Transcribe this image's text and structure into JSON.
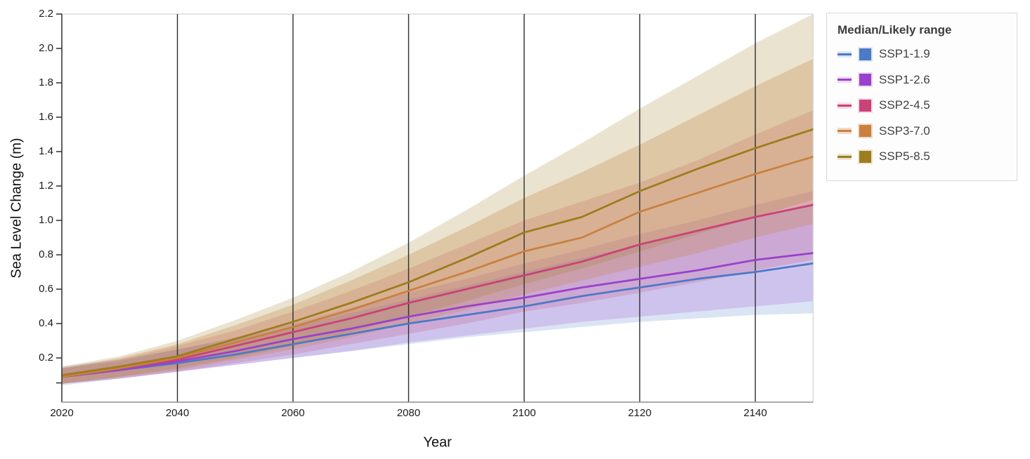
{
  "chart_data": {
    "type": "area",
    "title": "",
    "xlabel": "Year",
    "ylabel": "Sea Level Change (m)",
    "xlim": [
      2020,
      2150
    ],
    "ylim": [
      -0.057,
      2.2
    ],
    "grid": "vertical-black-gridlines",
    "legend_position": "right",
    "legend_title": "Median/Likely range",
    "x_ticks": [
      2020,
      2040,
      2060,
      2080,
      2100,
      2120,
      2140
    ],
    "x_tick_labels": [
      "2020",
      "2040",
      "2060",
      "2080",
      "2100",
      "2120",
      "2140"
    ],
    "y_ticks": [
      0.2,
      0.4,
      0.6,
      0.8,
      1.0,
      1.2,
      1.4,
      1.6,
      1.8,
      2.0,
      2.2
    ],
    "y_tick_labels": [
      "0.2",
      "0.4",
      "0.6",
      "0.8",
      "1.0",
      "1.2",
      "1.4",
      "1.6",
      "1.8",
      "2.0",
      "2.2"
    ],
    "y_minor_ticks": [
      0.055
    ],
    "x": [
      2020,
      2030,
      2040,
      2050,
      2060,
      2070,
      2080,
      2090,
      2100,
      2110,
      2120,
      2130,
      2140,
      2150
    ],
    "series": [
      {
        "name": "SSP1-1.9",
        "color": "#4d79c6",
        "band_color": "rgba(77,121,198,0.20)",
        "band_solid": "#dce4f4",
        "median": [
          0.09,
          0.13,
          0.17,
          0.22,
          0.28,
          0.34,
          0.4,
          0.45,
          0.5,
          0.56,
          0.61,
          0.66,
          0.7,
          0.75
        ],
        "lower": [
          0.04,
          0.08,
          0.12,
          0.16,
          0.2,
          0.24,
          0.28,
          0.32,
          0.35,
          0.38,
          0.41,
          0.43,
          0.45,
          0.46
        ],
        "upper": [
          0.15,
          0.19,
          0.25,
          0.31,
          0.38,
          0.46,
          0.54,
          0.62,
          0.7,
          0.78,
          0.86,
          0.94,
          1.02,
          1.1
        ]
      },
      {
        "name": "SSP1-2.6",
        "color": "#9a41cb",
        "band_color": "rgba(154,65,203,0.20)",
        "band_solid": "#eadaf5",
        "median": [
          0.09,
          0.13,
          0.18,
          0.24,
          0.31,
          0.37,
          0.44,
          0.5,
          0.55,
          0.61,
          0.66,
          0.71,
          0.77,
          0.81
        ],
        "lower": [
          0.05,
          0.08,
          0.12,
          0.16,
          0.2,
          0.24,
          0.29,
          0.33,
          0.37,
          0.41,
          0.44,
          0.47,
          0.5,
          0.53
        ],
        "upper": [
          0.14,
          0.18,
          0.25,
          0.32,
          0.4,
          0.49,
          0.58,
          0.66,
          0.75,
          0.83,
          0.92,
          1.0,
          1.09,
          1.17
        ]
      },
      {
        "name": "SSP2-4.5",
        "color": "#ca4278",
        "band_color": "rgba(202,66,120,0.20)",
        "band_solid": "#f5d9e4",
        "median": [
          0.09,
          0.14,
          0.19,
          0.27,
          0.35,
          0.43,
          0.52,
          0.6,
          0.68,
          0.76,
          0.86,
          0.94,
          1.02,
          1.09
        ],
        "lower": [
          0.05,
          0.08,
          0.12,
          0.17,
          0.22,
          0.28,
          0.34,
          0.4,
          0.47,
          0.52,
          0.58,
          0.64,
          0.71,
          0.77
        ],
        "upper": [
          0.14,
          0.19,
          0.27,
          0.36,
          0.47,
          0.59,
          0.72,
          0.86,
          1.0,
          1.11,
          1.22,
          1.35,
          1.5,
          1.64
        ]
      },
      {
        "name": "SSP3-7.0",
        "color": "#c8813f",
        "band_color": "rgba(200,129,63,0.28)",
        "band_solid": "#f1dbc9",
        "median": [
          0.09,
          0.14,
          0.2,
          0.29,
          0.38,
          0.48,
          0.59,
          0.7,
          0.82,
          0.9,
          1.05,
          1.16,
          1.27,
          1.37
        ],
        "lower": [
          0.05,
          0.09,
          0.13,
          0.19,
          0.25,
          0.32,
          0.4,
          0.48,
          0.57,
          0.65,
          0.73,
          0.81,
          0.9,
          0.98
        ],
        "upper": [
          0.14,
          0.2,
          0.28,
          0.39,
          0.51,
          0.65,
          0.8,
          0.96,
          1.13,
          1.28,
          1.44,
          1.61,
          1.78,
          1.94
        ]
      },
      {
        "name": "SSP5-8.5",
        "color": "#9d7d1d",
        "band_color": "rgba(157,125,29,0.21)",
        "band_solid": "#ebe4d0",
        "median": [
          0.1,
          0.15,
          0.21,
          0.31,
          0.41,
          0.52,
          0.64,
          0.78,
          0.93,
          1.02,
          1.17,
          1.3,
          1.42,
          1.53
        ],
        "lower": [
          0.05,
          0.09,
          0.14,
          0.2,
          0.27,
          0.35,
          0.44,
          0.53,
          0.63,
          0.72,
          0.82,
          0.92,
          1.02,
          1.12
        ],
        "upper": [
          0.15,
          0.21,
          0.3,
          0.42,
          0.55,
          0.7,
          0.87,
          1.06,
          1.26,
          1.45,
          1.65,
          1.84,
          2.03,
          2.2
        ]
      }
    ]
  },
  "legend": {
    "title": "Median/Likely range"
  }
}
